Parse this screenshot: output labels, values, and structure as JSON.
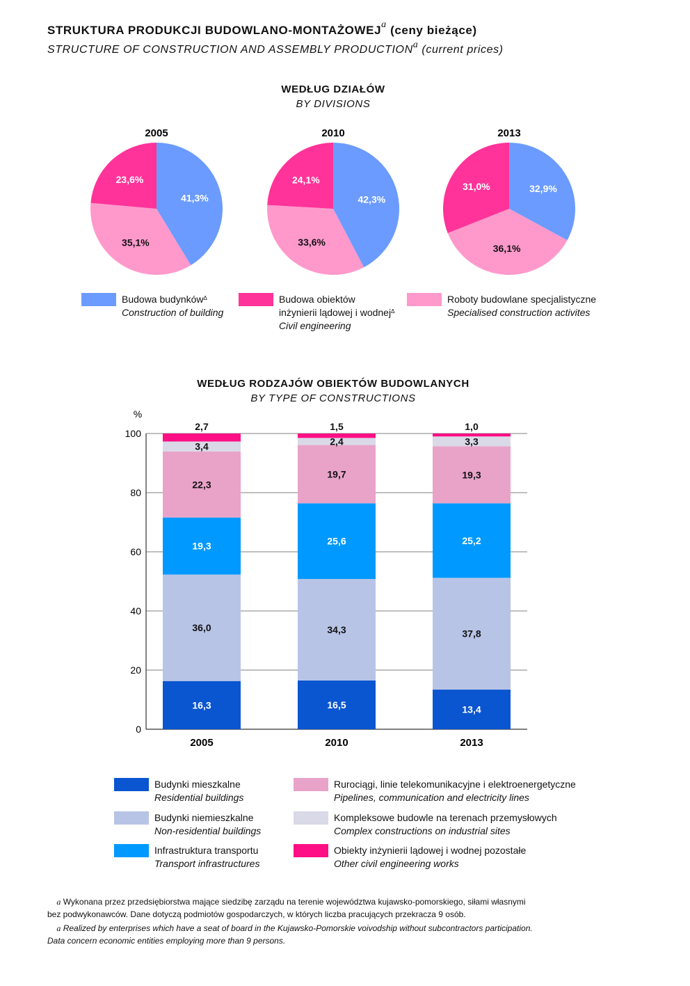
{
  "header": {
    "title_pl": "STRUKTURA PRODUKCJI BUDOWLANO-MONTAŻOWEJ",
    "title_pl_suffix": "(ceny bieżące)",
    "title_en": "STRUCTURE OF CONSTRUCTION AND ASSEMBLY PRODUCTION",
    "title_en_suffix": "(current prices)",
    "footnote_mark": "a"
  },
  "pies_section": {
    "title_pl": "WEDŁUG DZIAŁÓW",
    "title_en": "BY DIVISIONS",
    "legend": [
      {
        "pl": "Budowa budynków",
        "pl2": "",
        "mark": "Δ",
        "en": "Construction of building",
        "color": "#6b9bff"
      },
      {
        "pl": "Budowa obiektów",
        "pl2": "inżynierii lądowej i wodnej",
        "mark": "Δ",
        "en": "Civil engineering",
        "color": "#ff3399"
      },
      {
        "pl": "Roboty budowlane specjalistyczne",
        "pl2": "",
        "mark": "",
        "en": "Specialised construction activites",
        "color": "#ff99cc"
      }
    ]
  },
  "bars_section": {
    "title_pl": "WEDŁUG RODZAJÓW OBIEKTÓW BUDOWLANYCH",
    "title_en": "BY TYPE OF CONSTRUCTIONS",
    "legend": [
      {
        "pl": "Budynki mieszkalne",
        "en": "Residential buildings",
        "color": "#0a55d0"
      },
      {
        "pl": "Rurociągi, linie telekomunikacyjne i elektroenergetyczne",
        "en": "Pipelines, communication and electricity lines",
        "color": "#e9a3c9"
      },
      {
        "pl": "Budynki niemieszkalne",
        "en": "Non-residential buildings",
        "color": "#b8c4e6"
      },
      {
        "pl": "Kompleksowe budowle na terenach przemysłowych",
        "en": "Complex constructions on industrial sites",
        "color": "#d9d9e8"
      },
      {
        "pl": "Infrastruktura transportu",
        "en": "Transport infrastructures",
        "color": "#0099ff"
      },
      {
        "pl": "Obiekty inżynierii lądowej i wodnej pozostałe",
        "en": "Other civil engineering works",
        "color": "#ff0f85"
      }
    ]
  },
  "footnotes": {
    "pl_line1": "Wykonana przez przedsiębiorstwa mające siedzibę zarządu na terenie województwa kujawsko-pomorskiego, siłami własnymi",
    "pl_line2": "bez podwykonawców. Dane dotyczą podmiotów gospodarczych, w których liczba pracujących przekracza 9 osób.",
    "en_line1": "Realized by enterprises which have a seat of board in the Kujawsko-Pomorskie voivodship without subcontractors participation.",
    "en_line2": "Data concern economic entities employing more than 9 persons."
  },
  "chart_data": [
    {
      "type": "pie",
      "title": "2005",
      "labels": [
        "Budowa budynków",
        "Roboty budowlane specjalistyczne",
        "Budowa obiektów inżynierii lądowej i wodnej"
      ],
      "values": [
        41.3,
        35.1,
        23.6
      ],
      "value_labels": [
        "41,3%",
        "35,1%",
        "23,6%"
      ],
      "colors": [
        "#6b9bff",
        "#ff99cc",
        "#ff3399"
      ]
    },
    {
      "type": "pie",
      "title": "2010",
      "labels": [
        "Budowa budynków",
        "Roboty budowlane specjalistyczne",
        "Budowa obiektów inżynierii lądowej i wodnej"
      ],
      "values": [
        42.3,
        33.6,
        24.1
      ],
      "value_labels": [
        "42,3%",
        "33,6%",
        "24,1%"
      ],
      "colors": [
        "#6b9bff",
        "#ff99cc",
        "#ff3399"
      ]
    },
    {
      "type": "pie",
      "title": "2013",
      "labels": [
        "Budowa budynków",
        "Roboty budowlane specjalistyczne",
        "Budowa obiektów inżynierii lądowej i wodnej"
      ],
      "values": [
        32.9,
        36.1,
        31.0
      ],
      "value_labels": [
        "32,9%",
        "36,1%",
        "31,0%"
      ],
      "colors": [
        "#6b9bff",
        "#ff99cc",
        "#ff3399"
      ]
    },
    {
      "type": "bar",
      "stacked": true,
      "categories": [
        "2005",
        "2010",
        "2013"
      ],
      "ylabel": "%",
      "ylim": [
        0,
        100
      ],
      "yticks": [
        0,
        20,
        40,
        60,
        80,
        100
      ],
      "grid": true,
      "series": [
        {
          "name": "Budynki mieszkalne",
          "values": [
            16.3,
            16.5,
            13.4
          ],
          "labels": [
            "16,3",
            "16,5",
            "13,4"
          ],
          "color": "#0a55d0",
          "label_color": "#ffffff"
        },
        {
          "name": "Budynki niemieszkalne",
          "values": [
            36.0,
            34.3,
            37.8
          ],
          "labels": [
            "36,0",
            "34,3",
            "37,8"
          ],
          "color": "#b8c4e6",
          "label_color": "#111111"
        },
        {
          "name": "Infrastruktura transportu",
          "values": [
            19.3,
            25.6,
            25.2
          ],
          "labels": [
            "19,3",
            "25,6",
            "25,2"
          ],
          "color": "#0099ff",
          "label_color": "#ffffff"
        },
        {
          "name": "Rurociągi, linie telekomunikacyjne i elektroenergetyczne",
          "values": [
            22.3,
            19.7,
            19.3
          ],
          "labels": [
            "22,3",
            "19,7",
            "19,3"
          ],
          "color": "#e9a3c9",
          "label_color": "#111111"
        },
        {
          "name": "Kompleksowe budowle na terenach przemysłowych",
          "values": [
            3.4,
            2.4,
            3.3
          ],
          "labels": [
            "3,4",
            "2,4",
            "3,3"
          ],
          "color": "#d9d9e8",
          "label_color": "#111111"
        },
        {
          "name": "Obiekty inżynierii lądowej i wodnej pozostałe",
          "values": [
            2.7,
            1.5,
            1.0
          ],
          "labels": [
            "2,7",
            "1,5",
            "1,0"
          ],
          "color": "#ff0f85",
          "label_color": "#111111"
        }
      ]
    }
  ]
}
